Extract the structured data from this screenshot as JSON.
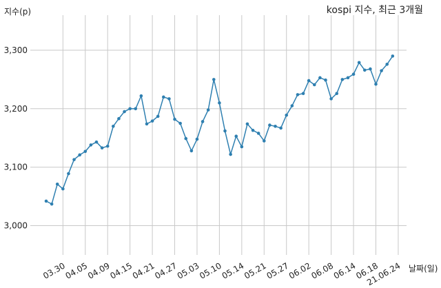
{
  "chart_data": {
    "type": "line",
    "title": "kospi 지수, 최근 3개월",
    "xlabel": "날짜(일)",
    "ylabel": "지수(p)",
    "ylim": [
      2950,
      3360
    ],
    "yticks": [
      3000,
      3100,
      3200,
      3300
    ],
    "ytick_labels": [
      "3,000",
      "3,100",
      "3,200",
      "3,300"
    ],
    "grid": true,
    "line_color": "#2e7fb0",
    "xtick_labels": [
      "03.30",
      "04.05",
      "04.09",
      "04.15",
      "04.21",
      "04.27",
      "05.03",
      "05.10",
      "05.14",
      "05.21",
      "05.27",
      "06.02",
      "06.08",
      "06.14",
      "06.18",
      "21.06.24"
    ],
    "xtick_index": [
      3,
      7,
      11,
      15,
      19,
      23,
      27,
      31,
      35,
      39,
      43,
      47,
      51,
      55,
      59,
      63
    ],
    "values": [
      3042,
      3037,
      3071,
      3063,
      3089,
      3113,
      3121,
      3127,
      3138,
      3143,
      3133,
      3136,
      3170,
      3183,
      3195,
      3200,
      3200,
      3222,
      3174,
      3179,
      3187,
      3220,
      3217,
      3182,
      3175,
      3149,
      3128,
      3148,
      3178,
      3198,
      3250,
      3210,
      3162,
      3122,
      3153,
      3135,
      3174,
      3163,
      3158,
      3145,
      3172,
      3170,
      3167,
      3189,
      3205,
      3224,
      3226,
      3248,
      3241,
      3253,
      3249,
      3217,
      3226,
      3250,
      3253,
      3259,
      3279,
      3266,
      3268,
      3242,
      3265,
      3276,
      3290
    ]
  }
}
